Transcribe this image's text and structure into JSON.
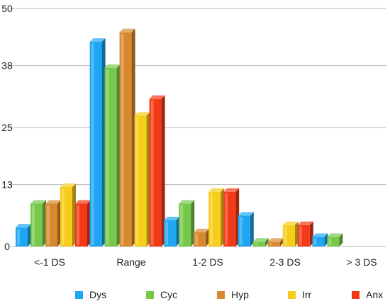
{
  "chart_data": {
    "type": "bar",
    "title": "",
    "xlabel": "",
    "ylabel": "",
    "ylim": [
      0,
      50
    ],
    "yticks": [
      "0",
      "13",
      "25",
      "38",
      "50"
    ],
    "grid": true,
    "legend_position": "bottom",
    "categories": [
      "<-1 DS",
      "Range",
      "1-2 DS",
      "2-3 DS",
      "> 3 DS"
    ],
    "series": [
      {
        "name": "Dys",
        "color": "#1ea6f2",
        "values": [
          4,
          43,
          5.5,
          6.5,
          2
        ]
      },
      {
        "name": "Cyc",
        "color": "#76c84a",
        "values": [
          9,
          37.5,
          9,
          1,
          2
        ]
      },
      {
        "name": "Hyp",
        "color": "#d8892e",
        "values": [
          9,
          45,
          3,
          1,
          0
        ]
      },
      {
        "name": "Irr",
        "color": "#f7cc1a",
        "values": [
          12.5,
          27.5,
          11.5,
          4.5,
          0
        ]
      },
      {
        "name": "Anx",
        "color": "#f33a17",
        "values": [
          9,
          31,
          11.5,
          4.5,
          0
        ]
      }
    ]
  }
}
